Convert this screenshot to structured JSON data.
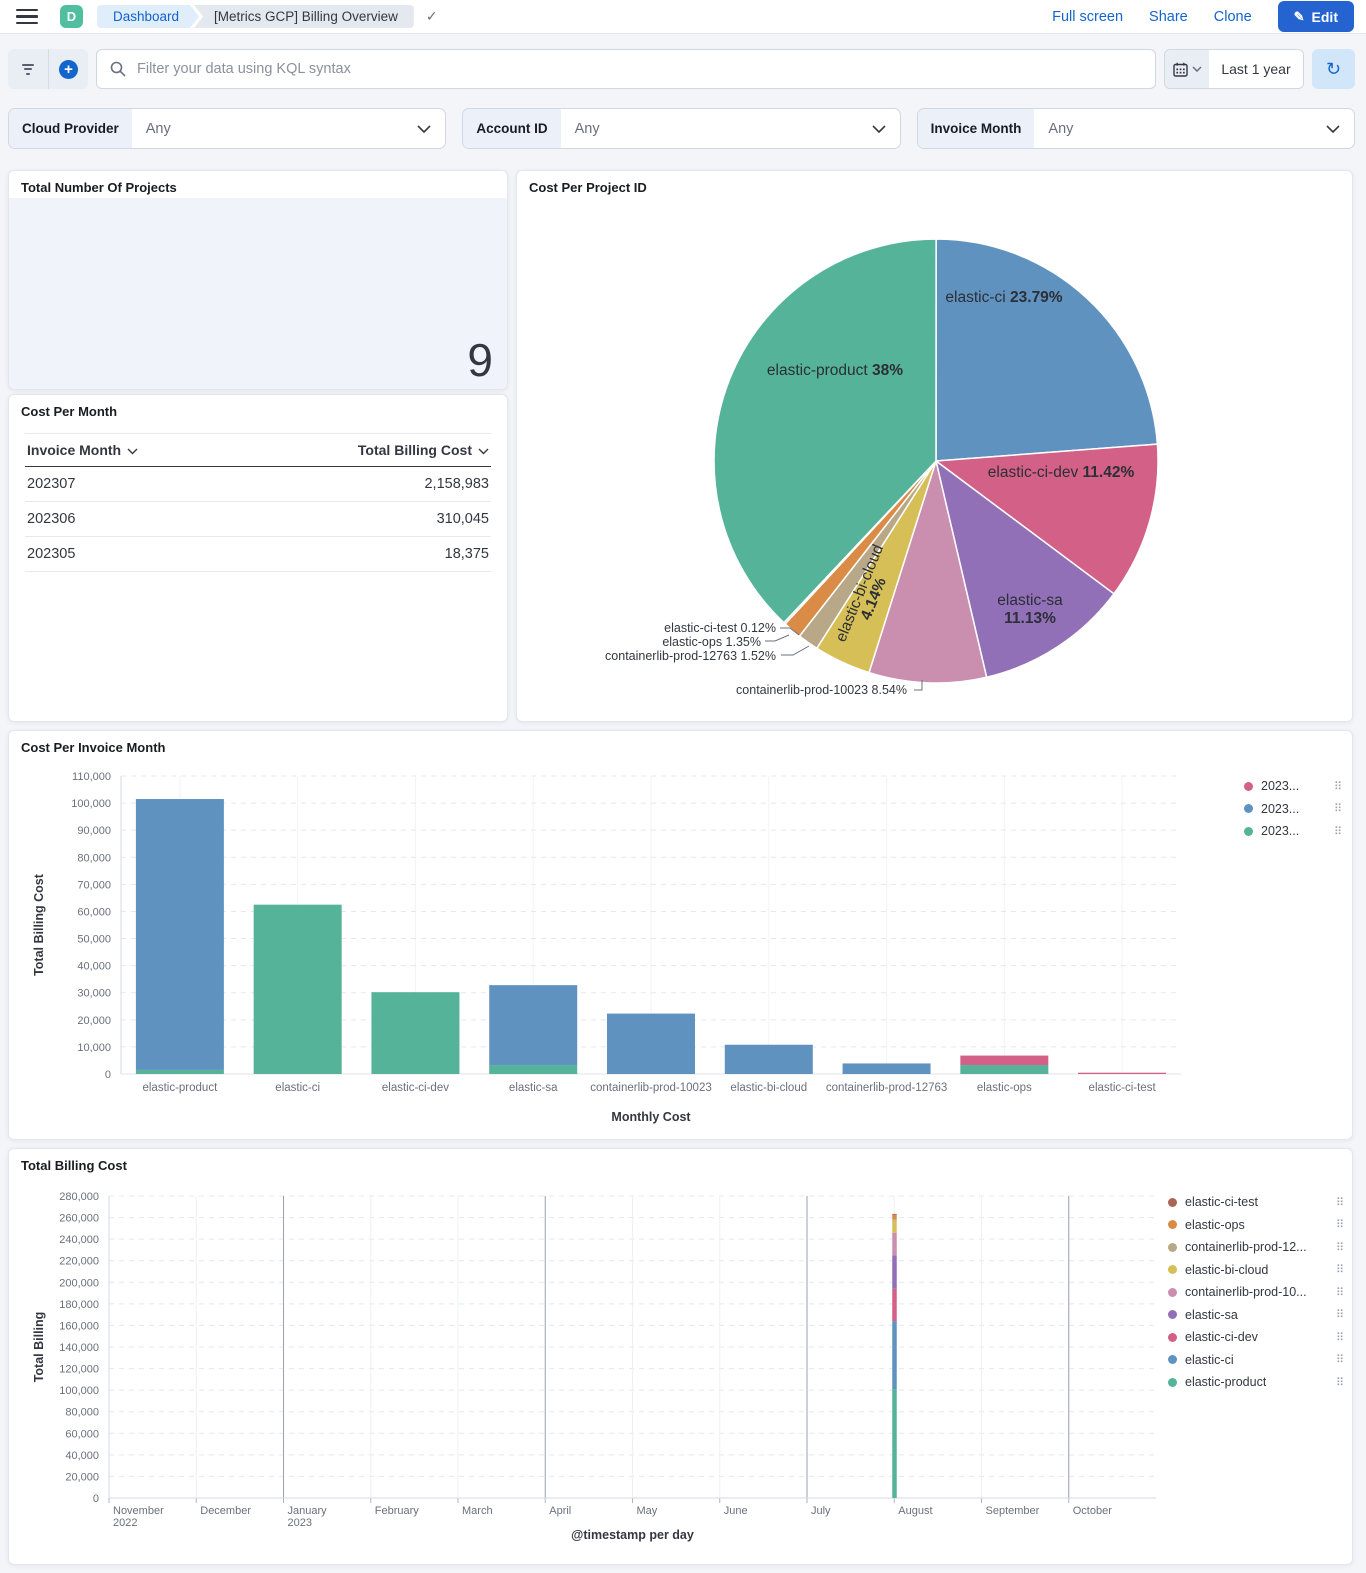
{
  "header": {
    "logo_letter": "D",
    "breadcrumbs": {
      "root": "Dashboard",
      "page": "[Metrics GCP] Billing Overview"
    },
    "actions": {
      "full_screen": "Full screen",
      "share": "Share",
      "clone": "Clone",
      "edit": "Edit"
    }
  },
  "query_bar": {
    "placeholder": "Filter your data using KQL syntax",
    "time_range": "Last 1 year"
  },
  "filters": [
    {
      "label": "Cloud Provider",
      "value": "Any"
    },
    {
      "label": "Account ID",
      "value": "Any"
    },
    {
      "label": "Invoice Month",
      "value": "Any"
    }
  ],
  "panels": {
    "metric": {
      "title": "Total Number Of Projects",
      "value": "9"
    },
    "cost_table": {
      "title": "Cost Per Month",
      "columns": [
        "Invoice Month",
        "Total Billing Cost"
      ],
      "rows": [
        [
          "202307",
          "2,158,983"
        ],
        [
          "202306",
          "310,045"
        ],
        [
          "202305",
          "18,375"
        ]
      ]
    },
    "pie_title": "Cost Per Project ID",
    "bar_title": "Cost Per Invoice Month",
    "ts_title": "Total Billing Cost"
  },
  "chart_data": [
    {
      "type": "pie",
      "title": "Cost Per Project ID",
      "slices": [
        {
          "name": "elastic-ci",
          "pct": 23.79,
          "display": "23.79%",
          "color": "#6092C0",
          "label": {
            "type": "in",
            "x": 487,
            "y": 131
          }
        },
        {
          "name": "elastic-ci-dev",
          "pct": 11.42,
          "display": "11.42%",
          "color": "#D36086",
          "label": {
            "type": "in",
            "x": 544,
            "y": 306
          }
        },
        {
          "name": "elastic-sa",
          "pct": 11.13,
          "display": "11.13%",
          "color": "#9170B8",
          "label": {
            "type": "in2",
            "x": 513,
            "y": 434
          }
        },
        {
          "name": "containerlib-prod-10023",
          "pct": 8.54,
          "display": "8.54%",
          "color": "#CA8EAE",
          "label": {
            "type": "out",
            "x": 390,
            "y": 523,
            "leader": [
              [
                397,
                519
              ],
              [
                405,
                519
              ],
              [
                405,
                509
              ]
            ]
          }
        },
        {
          "name": "elastic-bi-cloud",
          "pct": 4.14,
          "display": "4.14%",
          "color": "#D6BF57",
          "label": {
            "type": "rot",
            "x": 347,
            "y": 424,
            "rotate": -68
          }
        },
        {
          "name": "containerlib-prod-12763",
          "pct": 1.52,
          "display": "1.52%",
          "color": "#B9A888",
          "label": {
            "type": "out",
            "x": 259,
            "y": 489,
            "leader": [
              [
                264,
                484
              ],
              [
                276,
                484
              ],
              [
                292,
                475
              ]
            ]
          }
        },
        {
          "name": "elastic-ops",
          "pct": 1.35,
          "display": "1.35%",
          "color": "#DA8B45",
          "label": {
            "type": "out",
            "x": 244,
            "y": 475,
            "leader": [
              [
                248,
                470
              ],
              [
                258,
                470
              ],
              [
                272,
                464
              ]
            ]
          }
        },
        {
          "name": "elastic-ci-test",
          "pct": 0.12,
          "display": "0.12%",
          "color": "#AA6556",
          "label": {
            "type": "out",
            "x": 259,
            "y": 461,
            "leader": [
              [
                263,
                457
              ],
              [
                273,
                457
              ],
              [
                282,
                464
              ]
            ]
          }
        },
        {
          "name": "elastic-product",
          "pct": 38.0,
          "display": "38%",
          "color": "#54B399",
          "label": {
            "type": "in",
            "x": 318,
            "y": 204
          }
        }
      ],
      "geometry": {
        "cx": 419,
        "cy": 290,
        "r": 222
      }
    },
    {
      "type": "bar",
      "title": "Cost Per Invoice Month",
      "categories": [
        "elastic-product",
        "elastic-ci",
        "elastic-ci-dev",
        "elastic-sa",
        "containerlib-prod-10023",
        "elastic-bi-cloud",
        "containerlib-prod-12763",
        "elastic-ops",
        "elastic-ci-test"
      ],
      "series": [
        {
          "name": "2023...",
          "color": "#54B399",
          "values": [
            1500,
            62500,
            30200,
            3300,
            0,
            0,
            0,
            3300,
            0
          ]
        },
        {
          "name": "2023...",
          "color": "#6092C0",
          "values": [
            100000,
            0,
            0,
            29500,
            22300,
            10800,
            3900,
            0,
            0
          ]
        },
        {
          "name": "2023...",
          "color": "#D36086",
          "values": [
            0,
            0,
            0,
            0,
            0,
            0,
            0,
            3500,
            300
          ]
        }
      ],
      "stack_order": "bottom-to-top",
      "legend": [
        {
          "label": "2023...",
          "color": "#D36086"
        },
        {
          "label": "2023...",
          "color": "#6092C0"
        },
        {
          "label": "2023...",
          "color": "#54B399"
        }
      ],
      "legend_position": "right",
      "xlabel": "Monthly Cost",
      "ylabel": "Total Billing Cost",
      "ylim": [
        0,
        110000
      ],
      "ytick_step": 10000,
      "grid": true
    },
    {
      "type": "bar",
      "title": "Total Billing Cost",
      "x_months": [
        [
          "November",
          "2022"
        ],
        [
          "December"
        ],
        [
          "January",
          "2023"
        ],
        [
          "February"
        ],
        [
          "March"
        ],
        [
          "April"
        ],
        [
          "May"
        ],
        [
          "June"
        ],
        [
          "July"
        ],
        [
          "August"
        ],
        [
          "September"
        ],
        [
          "October"
        ]
      ],
      "quarter_line_indices": [
        2,
        5,
        8,
        11
      ],
      "spike": {
        "x_month_index": 9,
        "segments": [
          {
            "name": "elastic-product",
            "color": "#54B399",
            "value": 101000
          },
          {
            "name": "elastic-ci",
            "color": "#6092C0",
            "value": 63000
          },
          {
            "name": "elastic-ci-dev",
            "color": "#D36086",
            "value": 30000
          },
          {
            "name": "elastic-sa",
            "color": "#9170B8",
            "value": 31000
          },
          {
            "name": "containerlib-prod-10023",
            "color": "#CA8EAE",
            "value": 21000
          },
          {
            "name": "elastic-bi-cloud",
            "color": "#D6BF57",
            "value": 11000
          },
          {
            "name": "containerlib-prod-12763",
            "color": "#B9A888",
            "value": 1500
          },
          {
            "name": "elastic-ops",
            "color": "#DA8B45",
            "value": 4000
          },
          {
            "name": "elastic-ci-test",
            "color": "#AA6556",
            "value": 300
          }
        ]
      },
      "legend": [
        {
          "label": "elastic-ci-test",
          "color": "#AA6556"
        },
        {
          "label": "elastic-ops",
          "color": "#DA8B45"
        },
        {
          "label": "containerlib-prod-12...",
          "color": "#B9A888"
        },
        {
          "label": "elastic-bi-cloud",
          "color": "#D6BF57"
        },
        {
          "label": "containerlib-prod-10...",
          "color": "#CA8EAE"
        },
        {
          "label": "elastic-sa",
          "color": "#9170B8"
        },
        {
          "label": "elastic-ci-dev",
          "color": "#D36086"
        },
        {
          "label": "elastic-ci",
          "color": "#6092C0"
        },
        {
          "label": "elastic-product",
          "color": "#54B399"
        }
      ],
      "legend_position": "right",
      "xlabel": "@timestamp per day",
      "ylabel": "Total Billing",
      "ylim": [
        0,
        280000
      ],
      "ytick_step": 20000,
      "grid": true
    }
  ]
}
